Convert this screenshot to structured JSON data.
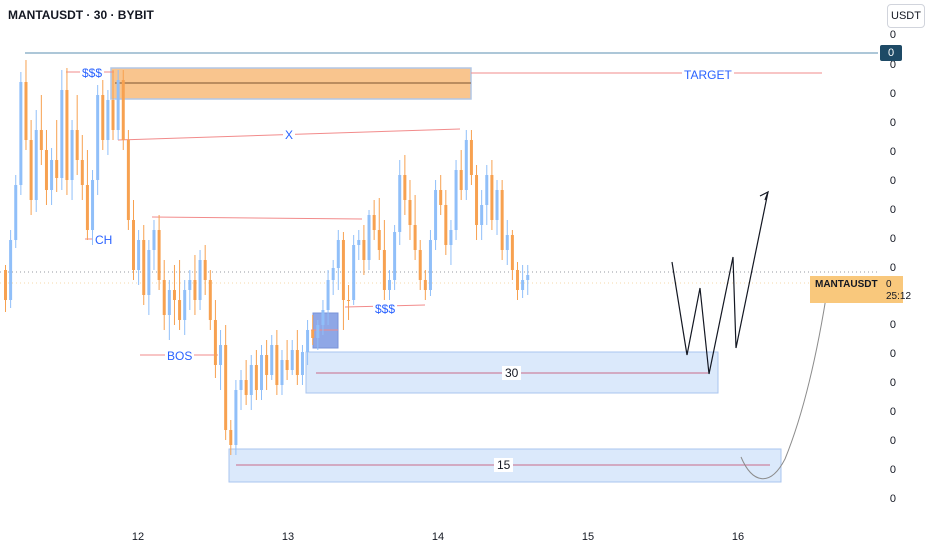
{
  "header": {
    "symbol_title": "MANTAUSDT · 30 · BYBIT",
    "currency": "USDT"
  },
  "price_axis": {
    "labels": [
      "0",
      "0",
      "0",
      "0",
      "0",
      "0",
      "0",
      "0",
      "0",
      "0",
      "0",
      "0",
      "0",
      "0",
      "0",
      "0",
      "0"
    ],
    "last_price": "0"
  },
  "symbol_tag": {
    "name": "MANTAUSDT",
    "value": "0",
    "countdown": "25:12"
  },
  "time_axis": {
    "labels": [
      "12",
      "13",
      "14",
      "15",
      "16"
    ]
  },
  "annotations": {
    "liq_left": "$$$",
    "target": "TARGET",
    "x_level": "X",
    "ch": "CH",
    "liq_mid": "$$$",
    "bos": "BOS",
    "zone_30": "30",
    "zone_15": "15"
  },
  "colors": {
    "up": "#90bff9",
    "down": "#f7a150",
    "supply_zone": "#f9c58e",
    "demand_zone": "#dbe9fb",
    "order_block": "#8fa7e6",
    "annotation_line": "#f28b8b",
    "label_text": "#2962ff",
    "price_tag": "#1e4a66",
    "symbol_tag": "#f9c87c"
  },
  "chart_data": {
    "type": "candlestick",
    "symbol": "MANTAUSDT",
    "timeframe": "30",
    "exchange": "BYBIT",
    "x_ticks": [
      "12",
      "13",
      "14",
      "15",
      "16"
    ],
    "series": [
      {
        "values": [
          {
            "o": 270,
            "h": 265,
            "l": 312,
            "c": 300
          },
          {
            "o": 300,
            "h": 230,
            "l": 308,
            "c": 240
          },
          {
            "o": 240,
            "h": 175,
            "l": 248,
            "c": 185
          },
          {
            "o": 185,
            "h": 72,
            "l": 195,
            "c": 82
          },
          {
            "o": 82,
            "h": 60,
            "l": 150,
            "c": 140
          },
          {
            "o": 140,
            "h": 120,
            "l": 215,
            "c": 200
          },
          {
            "o": 200,
            "h": 110,
            "l": 212,
            "c": 130
          },
          {
            "o": 130,
            "h": 95,
            "l": 165,
            "c": 150
          },
          {
            "o": 150,
            "h": 130,
            "l": 205,
            "c": 190
          },
          {
            "o": 190,
            "h": 148,
            "l": 205,
            "c": 160
          },
          {
            "o": 160,
            "h": 120,
            "l": 192,
            "c": 178
          },
          {
            "o": 178,
            "h": 70,
            "l": 190,
            "c": 90
          },
          {
            "o": 90,
            "h": 68,
            "l": 195,
            "c": 180
          },
          {
            "o": 180,
            "h": 120,
            "l": 200,
            "c": 130
          },
          {
            "o": 130,
            "h": 95,
            "l": 175,
            "c": 160
          },
          {
            "o": 160,
            "h": 135,
            "l": 200,
            "c": 185
          },
          {
            "o": 185,
            "h": 150,
            "l": 240,
            "c": 230
          },
          {
            "o": 230,
            "h": 170,
            "l": 245,
            "c": 180
          },
          {
            "o": 180,
            "h": 85,
            "l": 195,
            "c": 95
          },
          {
            "o": 95,
            "h": 80,
            "l": 150,
            "c": 140
          },
          {
            "o": 140,
            "h": 90,
            "l": 155,
            "c": 100
          },
          {
            "o": 100,
            "h": 70,
            "l": 140,
            "c": 130
          },
          {
            "o": 130,
            "h": 70,
            "l": 140,
            "c": 80
          },
          {
            "o": 80,
            "h": 70,
            "l": 150,
            "c": 140
          },
          {
            "o": 140,
            "h": 130,
            "l": 230,
            "c": 220
          },
          {
            "o": 220,
            "h": 200,
            "l": 280,
            "c": 270
          },
          {
            "o": 270,
            "h": 230,
            "l": 285,
            "c": 240
          },
          {
            "o": 240,
            "h": 225,
            "l": 305,
            "c": 295
          },
          {
            "o": 295,
            "h": 240,
            "l": 315,
            "c": 250
          },
          {
            "o": 250,
            "h": 220,
            "l": 270,
            "c": 230
          },
          {
            "o": 230,
            "h": 215,
            "l": 290,
            "c": 280
          },
          {
            "o": 280,
            "h": 260,
            "l": 330,
            "c": 315
          },
          {
            "o": 315,
            "h": 280,
            "l": 340,
            "c": 290
          },
          {
            "o": 290,
            "h": 265,
            "l": 325,
            "c": 300
          },
          {
            "o": 300,
            "h": 260,
            "l": 330,
            "c": 320
          },
          {
            "o": 320,
            "h": 280,
            "l": 335,
            "c": 290
          },
          {
            "o": 290,
            "h": 270,
            "l": 310,
            "c": 280
          },
          {
            "o": 280,
            "h": 255,
            "l": 315,
            "c": 300
          },
          {
            "o": 300,
            "h": 250,
            "l": 310,
            "c": 260
          },
          {
            "o": 260,
            "h": 245,
            "l": 295,
            "c": 280
          },
          {
            "o": 280,
            "h": 270,
            "l": 330,
            "c": 320
          },
          {
            "o": 320,
            "h": 300,
            "l": 378,
            "c": 365
          },
          {
            "o": 365,
            "h": 330,
            "l": 390,
            "c": 345
          },
          {
            "o": 345,
            "h": 325,
            "l": 440,
            "c": 430
          },
          {
            "o": 430,
            "h": 420,
            "l": 455,
            "c": 445
          },
          {
            "o": 445,
            "h": 380,
            "l": 455,
            "c": 390
          },
          {
            "o": 390,
            "h": 370,
            "l": 410,
            "c": 380
          },
          {
            "o": 380,
            "h": 360,
            "l": 405,
            "c": 395
          },
          {
            "o": 395,
            "h": 355,
            "l": 410,
            "c": 365
          },
          {
            "o": 365,
            "h": 350,
            "l": 400,
            "c": 390
          },
          {
            "o": 390,
            "h": 345,
            "l": 400,
            "c": 355
          },
          {
            "o": 355,
            "h": 340,
            "l": 390,
            "c": 375
          },
          {
            "o": 375,
            "h": 335,
            "l": 380,
            "c": 345
          },
          {
            "o": 345,
            "h": 330,
            "l": 395,
            "c": 385
          },
          {
            "o": 385,
            "h": 350,
            "l": 395,
            "c": 360
          },
          {
            "o": 360,
            "h": 340,
            "l": 380,
            "c": 370
          },
          {
            "o": 370,
            "h": 340,
            "l": 375,
            "c": 350
          },
          {
            "o": 350,
            "h": 330,
            "l": 385,
            "c": 375
          },
          {
            "o": 375,
            "h": 345,
            "l": 385,
            "c": 352
          },
          {
            "o": 352,
            "h": 320,
            "l": 365,
            "c": 330
          },
          {
            "o": 330,
            "h": 315,
            "l": 345,
            "c": 338
          },
          {
            "o": 338,
            "h": 320,
            "l": 350,
            "c": 325
          },
          {
            "o": 325,
            "h": 300,
            "l": 335,
            "c": 310
          },
          {
            "o": 310,
            "h": 270,
            "l": 325,
            "c": 280
          },
          {
            "o": 280,
            "h": 260,
            "l": 295,
            "c": 268
          },
          {
            "o": 268,
            "h": 230,
            "l": 290,
            "c": 240
          },
          {
            "o": 240,
            "h": 232,
            "l": 330,
            "c": 300
          },
          {
            "o": 300,
            "h": 285,
            "l": 320,
            "c": 300
          },
          {
            "o": 300,
            "h": 235,
            "l": 305,
            "c": 245
          },
          {
            "o": 245,
            "h": 230,
            "l": 260,
            "c": 240
          },
          {
            "o": 240,
            "h": 225,
            "l": 275,
            "c": 260
          },
          {
            "o": 260,
            "h": 210,
            "l": 270,
            "c": 215
          },
          {
            "o": 215,
            "h": 200,
            "l": 240,
            "c": 230
          },
          {
            "o": 230,
            "h": 198,
            "l": 260,
            "c": 250
          },
          {
            "o": 250,
            "h": 220,
            "l": 300,
            "c": 290
          },
          {
            "o": 290,
            "h": 270,
            "l": 300,
            "c": 280
          },
          {
            "o": 280,
            "h": 225,
            "l": 290,
            "c": 232
          },
          {
            "o": 232,
            "h": 160,
            "l": 245,
            "c": 175
          },
          {
            "o": 175,
            "h": 155,
            "l": 215,
            "c": 200
          },
          {
            "o": 200,
            "h": 180,
            "l": 240,
            "c": 225
          },
          {
            "o": 225,
            "h": 195,
            "l": 260,
            "c": 250
          },
          {
            "o": 250,
            "h": 240,
            "l": 290,
            "c": 280
          },
          {
            "o": 280,
            "h": 270,
            "l": 300,
            "c": 290
          },
          {
            "o": 290,
            "h": 230,
            "l": 296,
            "c": 240
          },
          {
            "o": 240,
            "h": 180,
            "l": 250,
            "c": 190
          },
          {
            "o": 190,
            "h": 175,
            "l": 215,
            "c": 205
          },
          {
            "o": 205,
            "h": 190,
            "l": 255,
            "c": 245
          },
          {
            "o": 245,
            "h": 220,
            "l": 265,
            "c": 230
          },
          {
            "o": 230,
            "h": 160,
            "l": 240,
            "c": 170
          },
          {
            "o": 170,
            "h": 150,
            "l": 200,
            "c": 190
          },
          {
            "o": 190,
            "h": 130,
            "l": 200,
            "c": 140
          },
          {
            "o": 140,
            "h": 130,
            "l": 185,
            "c": 175
          },
          {
            "o": 175,
            "h": 165,
            "l": 240,
            "c": 225
          },
          {
            "o": 225,
            "h": 190,
            "l": 240,
            "c": 205
          },
          {
            "o": 205,
            "h": 165,
            "l": 225,
            "c": 175
          },
          {
            "o": 175,
            "h": 160,
            "l": 230,
            "c": 220
          },
          {
            "o": 220,
            "h": 180,
            "l": 235,
            "c": 190
          },
          {
            "o": 190,
            "h": 180,
            "l": 260,
            "c": 250
          },
          {
            "o": 250,
            "h": 220,
            "l": 265,
            "c": 235
          },
          {
            "o": 235,
            "h": 230,
            "l": 280,
            "c": 270
          },
          {
            "o": 270,
            "h": 262,
            "l": 300,
            "c": 290
          },
          {
            "o": 290,
            "h": 265,
            "l": 298,
            "c": 280
          },
          {
            "o": 280,
            "h": 265,
            "l": 295,
            "c": 275
          }
        ]
      }
    ],
    "zones": [
      {
        "name": "supply",
        "price_top": 68,
        "price_bottom": 99
      },
      {
        "name": "30",
        "price_top": 352,
        "price_bottom": 393
      },
      {
        "name": "15",
        "price_top": 449,
        "price_bottom": 482
      }
    ]
  }
}
